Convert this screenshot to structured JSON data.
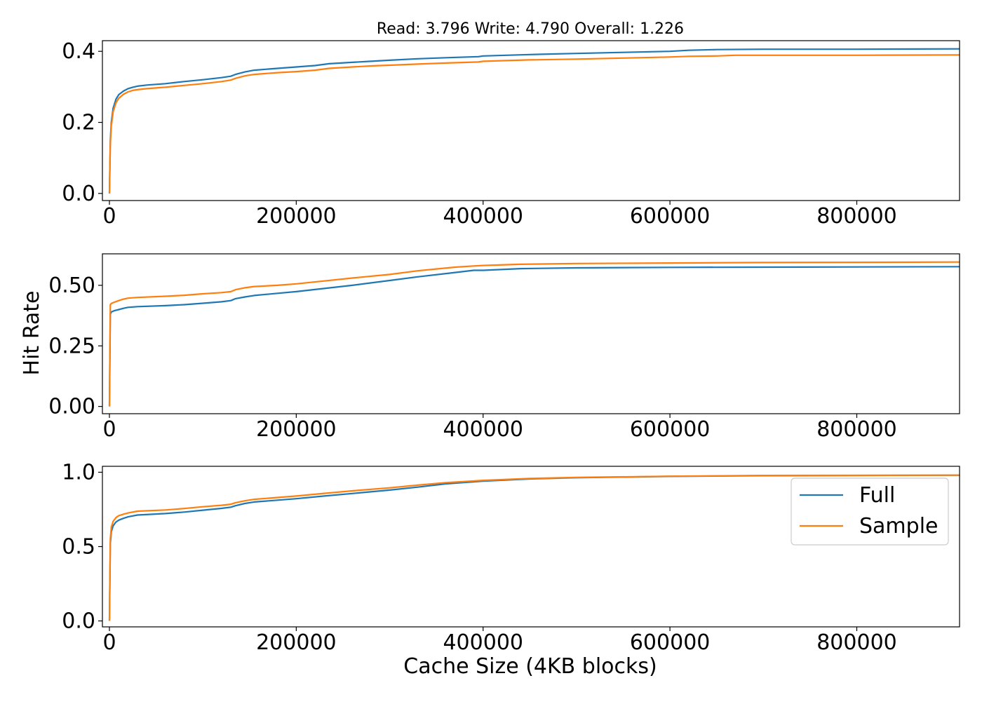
{
  "figure": {
    "title": "Read: 3.796 Write: 4.790 Overall: 1.226",
    "xlabel": "Cache Size (4KB blocks)",
    "ylabel": "Hit Rate"
  },
  "legend": {
    "placement": "upper-right-of-bottom-panel",
    "entries": [
      "Full",
      "Sample"
    ]
  },
  "colors": {
    "Full": "#1f77b4",
    "Sample": "#ff7f0e"
  },
  "chart_data": [
    {
      "type": "line",
      "xlim": [
        -7500,
        910000
      ],
      "ylim": [
        -0.02,
        0.43
      ],
      "xticks": [
        0,
        200000,
        400000,
        600000,
        800000
      ],
      "xtick_labels": [
        "0",
        "200000",
        "400000",
        "600000",
        "800000"
      ],
      "yticks": [
        0.0,
        0.2,
        0.4
      ],
      "ytick_labels": [
        "0.0",
        "0.2",
        "0.4"
      ],
      "series": [
        {
          "name": "Full",
          "x": [
            0,
            1000,
            2000,
            4000,
            7000,
            10000,
            15000,
            20000,
            25000,
            30000,
            40000,
            60000,
            80000,
            100000,
            120000,
            130000,
            135000,
            145000,
            155000,
            180000,
            200000,
            220000,
            235000,
            260000,
            280000,
            300000,
            330000,
            360000,
            395000,
            400000,
            450000,
            500000,
            550000,
            600000,
            620000,
            650000,
            700000,
            800000,
            910000
          ],
          "y": [
            0,
            0.15,
            0.2,
            0.24,
            0.265,
            0.278,
            0.288,
            0.295,
            0.299,
            0.302,
            0.305,
            0.309,
            0.315,
            0.32,
            0.326,
            0.33,
            0.335,
            0.342,
            0.347,
            0.352,
            0.356,
            0.36,
            0.365,
            0.369,
            0.372,
            0.375,
            0.379,
            0.382,
            0.385,
            0.387,
            0.391,
            0.394,
            0.397,
            0.4,
            0.403,
            0.405,
            0.406,
            0.406,
            0.407
          ]
        },
        {
          "name": "Sample",
          "x": [
            0,
            1000,
            2000,
            4000,
            7000,
            10000,
            15000,
            20000,
            25000,
            30000,
            40000,
            60000,
            80000,
            100000,
            120000,
            130000,
            135000,
            145000,
            155000,
            180000,
            200000,
            220000,
            235000,
            260000,
            280000,
            300000,
            330000,
            360000,
            395000,
            400000,
            450000,
            500000,
            550000,
            600000,
            620000,
            650000,
            670000,
            800000,
            910000
          ],
          "y": [
            0,
            0.14,
            0.19,
            0.23,
            0.255,
            0.268,
            0.279,
            0.286,
            0.29,
            0.292,
            0.295,
            0.299,
            0.304,
            0.309,
            0.315,
            0.319,
            0.324,
            0.331,
            0.335,
            0.34,
            0.343,
            0.347,
            0.352,
            0.356,
            0.359,
            0.361,
            0.364,
            0.367,
            0.37,
            0.372,
            0.376,
            0.378,
            0.381,
            0.384,
            0.386,
            0.387,
            0.389,
            0.389,
            0.39
          ]
        }
      ]
    },
    {
      "type": "line",
      "xlim": [
        -7500,
        910000
      ],
      "ylim": [
        -0.03,
        0.63
      ],
      "xticks": [
        0,
        200000,
        400000,
        600000,
        800000
      ],
      "xtick_labels": [
        "0",
        "200000",
        "400000",
        "600000",
        "800000"
      ],
      "yticks": [
        0.0,
        0.25,
        0.5
      ],
      "ytick_labels": [
        "0.00",
        "0.25",
        "0.50"
      ],
      "series": [
        {
          "name": "Full",
          "x": [
            0,
            1000,
            2000,
            5000,
            10000,
            15000,
            20000,
            30000,
            60000,
            80000,
            100000,
            120000,
            130000,
            135000,
            145000,
            155000,
            180000,
            200000,
            230000,
            260000,
            300000,
            330000,
            370000,
            390000,
            400000,
            440000,
            500000,
            600000,
            700000,
            800000,
            910000
          ],
          "y": [
            0,
            0.38,
            0.39,
            0.395,
            0.4,
            0.405,
            0.409,
            0.412,
            0.416,
            0.42,
            0.426,
            0.432,
            0.437,
            0.445,
            0.452,
            0.458,
            0.467,
            0.474,
            0.487,
            0.5,
            0.52,
            0.535,
            0.553,
            0.562,
            0.562,
            0.569,
            0.572,
            0.574,
            0.575,
            0.576,
            0.577
          ]
        },
        {
          "name": "Sample",
          "x": [
            0,
            1000,
            2000,
            5000,
            10000,
            15000,
            20000,
            30000,
            60000,
            80000,
            100000,
            120000,
            130000,
            135000,
            145000,
            155000,
            180000,
            200000,
            230000,
            260000,
            300000,
            330000,
            370000,
            390000,
            400000,
            440000,
            500000,
            600000,
            700000,
            800000,
            910000
          ],
          "y": [
            0,
            0.42,
            0.425,
            0.43,
            0.437,
            0.443,
            0.447,
            0.45,
            0.455,
            0.459,
            0.465,
            0.47,
            0.474,
            0.482,
            0.49,
            0.495,
            0.5,
            0.506,
            0.518,
            0.53,
            0.545,
            0.56,
            0.575,
            0.58,
            0.582,
            0.587,
            0.59,
            0.592,
            0.594,
            0.595,
            0.596
          ]
        }
      ]
    },
    {
      "type": "line",
      "xlim": [
        -7500,
        910000
      ],
      "ylim": [
        -0.04,
        1.04
      ],
      "xticks": [
        0,
        200000,
        400000,
        600000,
        800000
      ],
      "xtick_labels": [
        "0",
        "200000",
        "400000",
        "600000",
        "800000"
      ],
      "yticks": [
        0.0,
        0.5,
        1.0
      ],
      "ytick_labels": [
        "0.0",
        "0.5",
        "1.0"
      ],
      "series": [
        {
          "name": "Full",
          "x": [
            0,
            1000,
            2000,
            4000,
            7000,
            10000,
            15000,
            20000,
            30000,
            60000,
            80000,
            100000,
            120000,
            130000,
            135000,
            145000,
            155000,
            180000,
            200000,
            230000,
            260000,
            300000,
            330000,
            360000,
            400000,
            450000,
            500000,
            600000,
            700000,
            910000
          ],
          "y": [
            0,
            0.52,
            0.6,
            0.64,
            0.665,
            0.678,
            0.69,
            0.7,
            0.712,
            0.722,
            0.732,
            0.745,
            0.757,
            0.765,
            0.775,
            0.79,
            0.8,
            0.812,
            0.822,
            0.84,
            0.857,
            0.88,
            0.9,
            0.922,
            0.94,
            0.955,
            0.963,
            0.972,
            0.977,
            0.98
          ]
        },
        {
          "name": "Sample",
          "x": [
            0,
            1000,
            2000,
            4000,
            7000,
            10000,
            15000,
            20000,
            30000,
            60000,
            80000,
            100000,
            120000,
            130000,
            135000,
            145000,
            155000,
            180000,
            200000,
            230000,
            260000,
            300000,
            330000,
            360000,
            400000,
            450000,
            500000,
            600000,
            700000,
            910000
          ],
          "y": [
            0,
            0.55,
            0.63,
            0.67,
            0.695,
            0.708,
            0.718,
            0.726,
            0.738,
            0.746,
            0.756,
            0.768,
            0.778,
            0.785,
            0.795,
            0.808,
            0.818,
            0.83,
            0.84,
            0.858,
            0.875,
            0.895,
            0.913,
            0.93,
            0.945,
            0.958,
            0.965,
            0.973,
            0.978,
            0.98
          ]
        }
      ]
    }
  ]
}
